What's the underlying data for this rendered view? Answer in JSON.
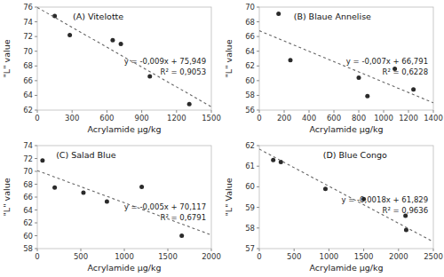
{
  "chart_data": [
    {
      "type": "scatter",
      "title": "(A) Vitelotte",
      "xlabel": "Acrylamide μg/kg",
      "ylabel": "\"L\" value",
      "xlim": [
        0,
        1500
      ],
      "ylim": [
        62,
        76
      ],
      "xticks": [
        0,
        300,
        600,
        900,
        1200,
        1500
      ],
      "yticks": [
        62,
        64,
        66,
        68,
        70,
        72,
        74,
        76
      ],
      "grid": false,
      "series": [
        {
          "type": "scatter",
          "marker": "circle",
          "color": "#2b2b2b",
          "x": [
            150,
            280,
            650,
            720,
            970,
            1310
          ],
          "values": [
            74.8,
            72.2,
            71.5,
            71.0,
            66.6,
            62.8
          ]
        },
        {
          "type": "line",
          "line_style": "dashed",
          "color": "#666666",
          "x": [
            0,
            1500
          ],
          "values": [
            75.949,
            62.449
          ]
        }
      ],
      "annotations": [
        "y = -0,009x + 75,949",
        "R² = 0,9053"
      ]
    },
    {
      "type": "scatter",
      "title": "(B) Blaue Annelise",
      "xlabel": "Acrylamide μg/kg",
      "ylabel": "\"L\" value",
      "xlim": [
        0,
        1400
      ],
      "ylim": [
        56,
        70
      ],
      "xticks": [
        0,
        200,
        400,
        600,
        800,
        1000,
        1200,
        1400
      ],
      "yticks": [
        56,
        58,
        60,
        62,
        64,
        66,
        68,
        70
      ],
      "grid": false,
      "series": [
        {
          "type": "scatter",
          "marker": "circle",
          "color": "#2b2b2b",
          "x": [
            155,
            250,
            800,
            870,
            1090,
            1240
          ],
          "values": [
            69.1,
            62.8,
            60.4,
            57.9,
            61.6,
            58.8
          ]
        },
        {
          "type": "line",
          "line_style": "dashed",
          "color": "#666666",
          "x": [
            0,
            1400
          ],
          "values": [
            66.791,
            56.991
          ]
        }
      ],
      "annotations": [
        "y = -0,007x + 66,791",
        "R² = 0,6228"
      ]
    },
    {
      "type": "scatter",
      "title": "(C) Salad Blue",
      "xlabel": "Acrylamide μg/kg",
      "ylabel": "\"L\" value",
      "xlim": [
        0,
        2000
      ],
      "ylim": [
        58,
        74
      ],
      "xticks": [
        0,
        500,
        1000,
        1500,
        2000
      ],
      "yticks": [
        58,
        60,
        62,
        64,
        66,
        68,
        70,
        72,
        74
      ],
      "grid": false,
      "series": [
        {
          "type": "scatter",
          "marker": "circle",
          "color": "#2b2b2b",
          "x": [
            60,
            200,
            530,
            800,
            1200,
            1660
          ],
          "values": [
            71.7,
            67.5,
            66.7,
            65.3,
            67.6,
            60.0
          ]
        },
        {
          "type": "line",
          "line_style": "dashed",
          "color": "#666666",
          "x": [
            0,
            2000
          ],
          "values": [
            70.117,
            60.117
          ]
        }
      ],
      "annotations": [
        "y = -0,005x + 70,117",
        "R² = 0,6791"
      ]
    },
    {
      "type": "scatter",
      "title": "(D) Blue Congo",
      "xlabel": "Acrylamide μg/kg",
      "ylabel": "\"L\" Value",
      "xlim": [
        0,
        2500
      ],
      "ylim": [
        57,
        62
      ],
      "xticks": [
        0,
        500,
        1000,
        1500,
        2000,
        2500
      ],
      "yticks": [
        57,
        58,
        59,
        60,
        61,
        62
      ],
      "grid": false,
      "series": [
        {
          "type": "scatter",
          "marker": "circle",
          "color": "#2b2b2b",
          "x": [
            200,
            310,
            950,
            1500,
            2100,
            2110
          ],
          "values": [
            61.3,
            61.2,
            59.9,
            59.4,
            58.6,
            57.9
          ]
        },
        {
          "type": "line",
          "line_style": "dashed",
          "color": "#666666",
          "x": [
            0,
            2500
          ],
          "values": [
            61.829,
            57.329
          ]
        }
      ],
      "annotations": [
        "y = -0,0018x + 61,829",
        "R² = 0,9636"
      ]
    }
  ]
}
